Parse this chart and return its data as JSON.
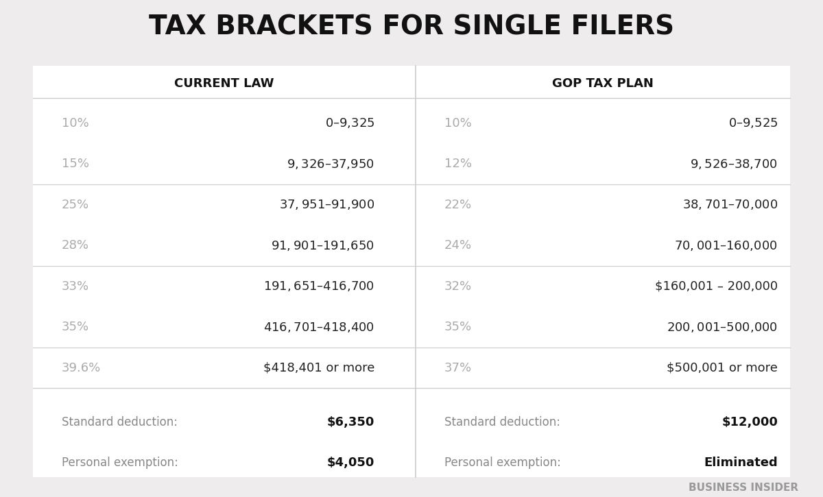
{
  "title": "TAX BRACKETS FOR SINGLE FILERS",
  "title_fontsize": 28,
  "bg_color": "#eeecec",
  "col_header_left": "CURRENT LAW",
  "col_header_right": "GOP TAX PLAN",
  "header_fontsize": 13,
  "current_law": [
    [
      "10%",
      "$0 – $9,325"
    ],
    [
      "15%",
      "$9,326 – $37,950"
    ],
    [
      "25%",
      "$37,951 – $91,900"
    ],
    [
      "28%",
      "$91,901 – $191,650"
    ],
    [
      "33%",
      "$191,651 – $416,700"
    ],
    [
      "35%",
      "$416,701 – $418,400"
    ],
    [
      "39.6%",
      "$418,401 or more"
    ]
  ],
  "gop_plan": [
    [
      "10%",
      "$0 – $9,525"
    ],
    [
      "12%",
      "$9,526 – $38,700"
    ],
    [
      "22%",
      "$38,701 – $70,000"
    ],
    [
      "24%",
      "$70,001 – $160,000"
    ],
    [
      "32%",
      "$160,001 – 200,000"
    ],
    [
      "35%",
      "$200,001 – $500,000"
    ],
    [
      "37%",
      "$500,001 or more"
    ]
  ],
  "current_deduction_label": "Standard deduction:",
  "current_deduction_value": "$6,350",
  "current_exemption_label": "Personal exemption:",
  "current_exemption_value": "$4,050",
  "gop_deduction_label": "Standard deduction:",
  "gop_deduction_value": "$12,000",
  "gop_exemption_label": "Personal exemption:",
  "gop_exemption_value": "Eliminated",
  "rate_color": "#aaaaaa",
  "range_color": "#222222",
  "label_color": "#888888",
  "divider_color": "#cccccc",
  "watermark": "BUSINESS INSIDER",
  "watermark_color": "#999999",
  "watermark_fontsize": 11,
  "group_separators": [
    1,
    3,
    5
  ]
}
